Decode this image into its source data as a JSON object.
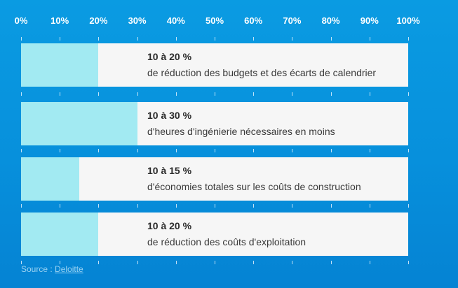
{
  "chart_data": {
    "type": "bar",
    "orientation": "horizontal",
    "unit": "%",
    "xlim": [
      0,
      100
    ],
    "ticks": [
      "0%",
      "10%",
      "20%",
      "30%",
      "40%",
      "50%",
      "60%",
      "70%",
      "80%",
      "90%",
      "100%"
    ],
    "bars": [
      {
        "value": 20,
        "range_label": "10 à 20 %",
        "description": "de réduction des budgets et des écarts de calendrier"
      },
      {
        "value": 30,
        "range_label": "10 à 30 %",
        "description": "d'heures d'ingénierie nécessaires en moins"
      },
      {
        "value": 15,
        "range_label": "10 à 15 %",
        "description": "d'économies totales sur les coûts de construction"
      },
      {
        "value": 20,
        "range_label": "10 à 20 %",
        "description": "de réduction des coûts d'exploitation"
      }
    ],
    "colors": {
      "fill": "#a2eaf2",
      "track": "#f6f6f6",
      "background": "#0a9be2"
    }
  },
  "source": {
    "prefix": "Source : ",
    "link_text": "Deloitte"
  }
}
